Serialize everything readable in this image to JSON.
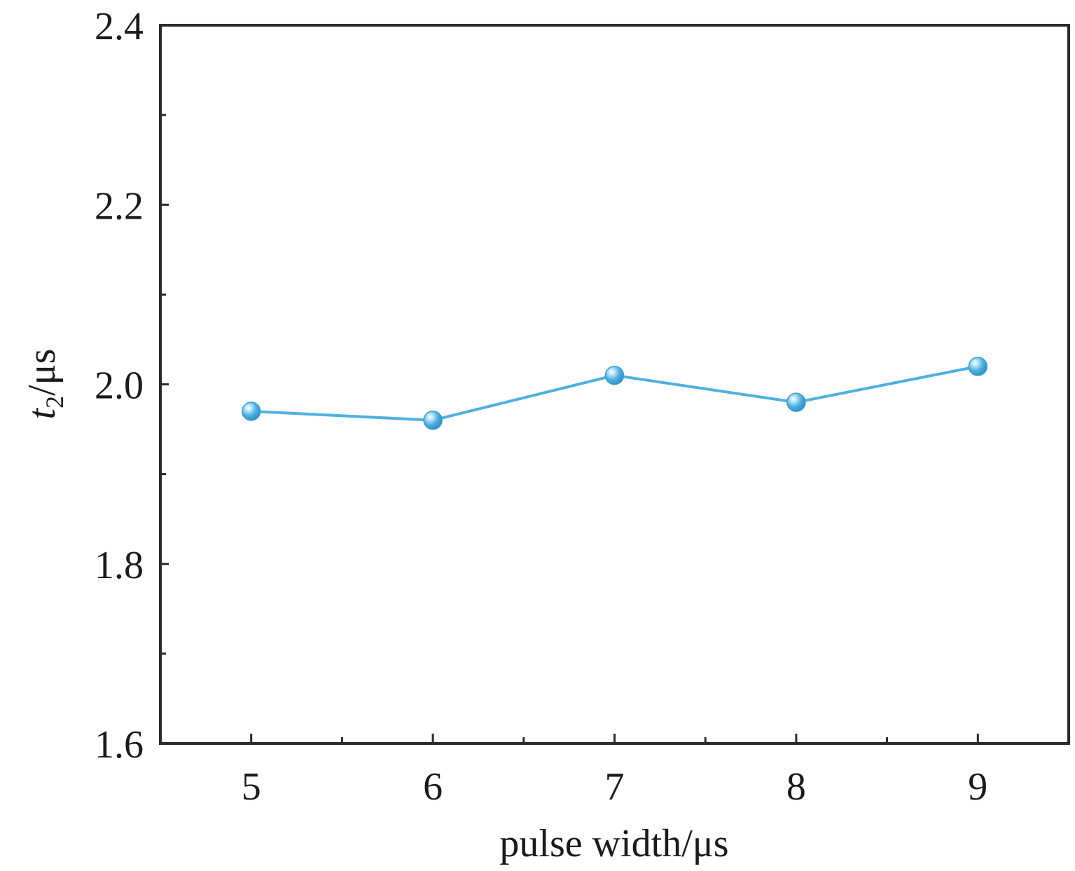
{
  "chart_data": {
    "type": "line",
    "x": [
      5,
      6,
      7,
      8,
      9
    ],
    "series": [
      {
        "values": [
          1.97,
          1.96,
          2.01,
          1.98,
          2.02
        ]
      }
    ],
    "xlabel": "pulse width/μs",
    "ylabel_italic": "t",
    "ylabel_subscript": "2",
    "ylabel_unit": "/μs",
    "xlim": [
      4.5,
      9.5
    ],
    "ylim": [
      1.6,
      2.4
    ],
    "x_ticks": [
      "5",
      "6",
      "7",
      "8",
      "9"
    ],
    "x_minor_ticks": [
      5.5,
      6.5,
      7.5,
      8.5
    ],
    "y_ticks": [
      "1.6",
      "1.8",
      "2.0",
      "2.2",
      "2.4"
    ],
    "y_minor_ticks": [
      1.7,
      1.9,
      2.1,
      2.3
    ],
    "grid": false,
    "colors": {
      "line": "#4fb0e0",
      "marker": "#4fb0e0",
      "axis": "#2b2b2b"
    }
  }
}
